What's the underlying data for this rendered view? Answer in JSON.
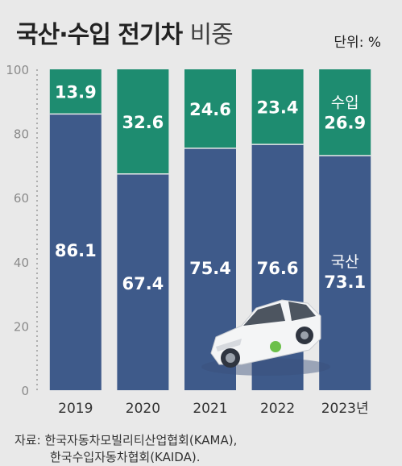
{
  "header": {
    "title_main": "국산·수입 전기차",
    "title_sub": "비중",
    "unit": "단위: %"
  },
  "source": {
    "label": "자료: ",
    "line1": "한국자동차모빌리티산업협회(KAMA),",
    "line2": "한국수입자동차협회(KAIDA)."
  },
  "colors": {
    "domestic": "#3e5a8a",
    "import": "#1e8c70",
    "background": "#e9e9e9",
    "car": "car-illustration"
  },
  "chart_data": {
    "type": "bar",
    "stacked": true,
    "categories": [
      "2019",
      "2020",
      "2021",
      "2022",
      "2023년"
    ],
    "series": [
      {
        "name": "국산",
        "values": [
          86.1,
          67.4,
          75.4,
          76.6,
          73.1
        ]
      },
      {
        "name": "수입",
        "values": [
          13.9,
          32.6,
          24.6,
          23.4,
          26.9
        ]
      }
    ],
    "y_ticks": [
      "0",
      "20",
      "40",
      "60",
      "80",
      "100"
    ],
    "ylim": [
      0,
      100
    ],
    "grid": false,
    "legend": "inline labels on last bar"
  }
}
